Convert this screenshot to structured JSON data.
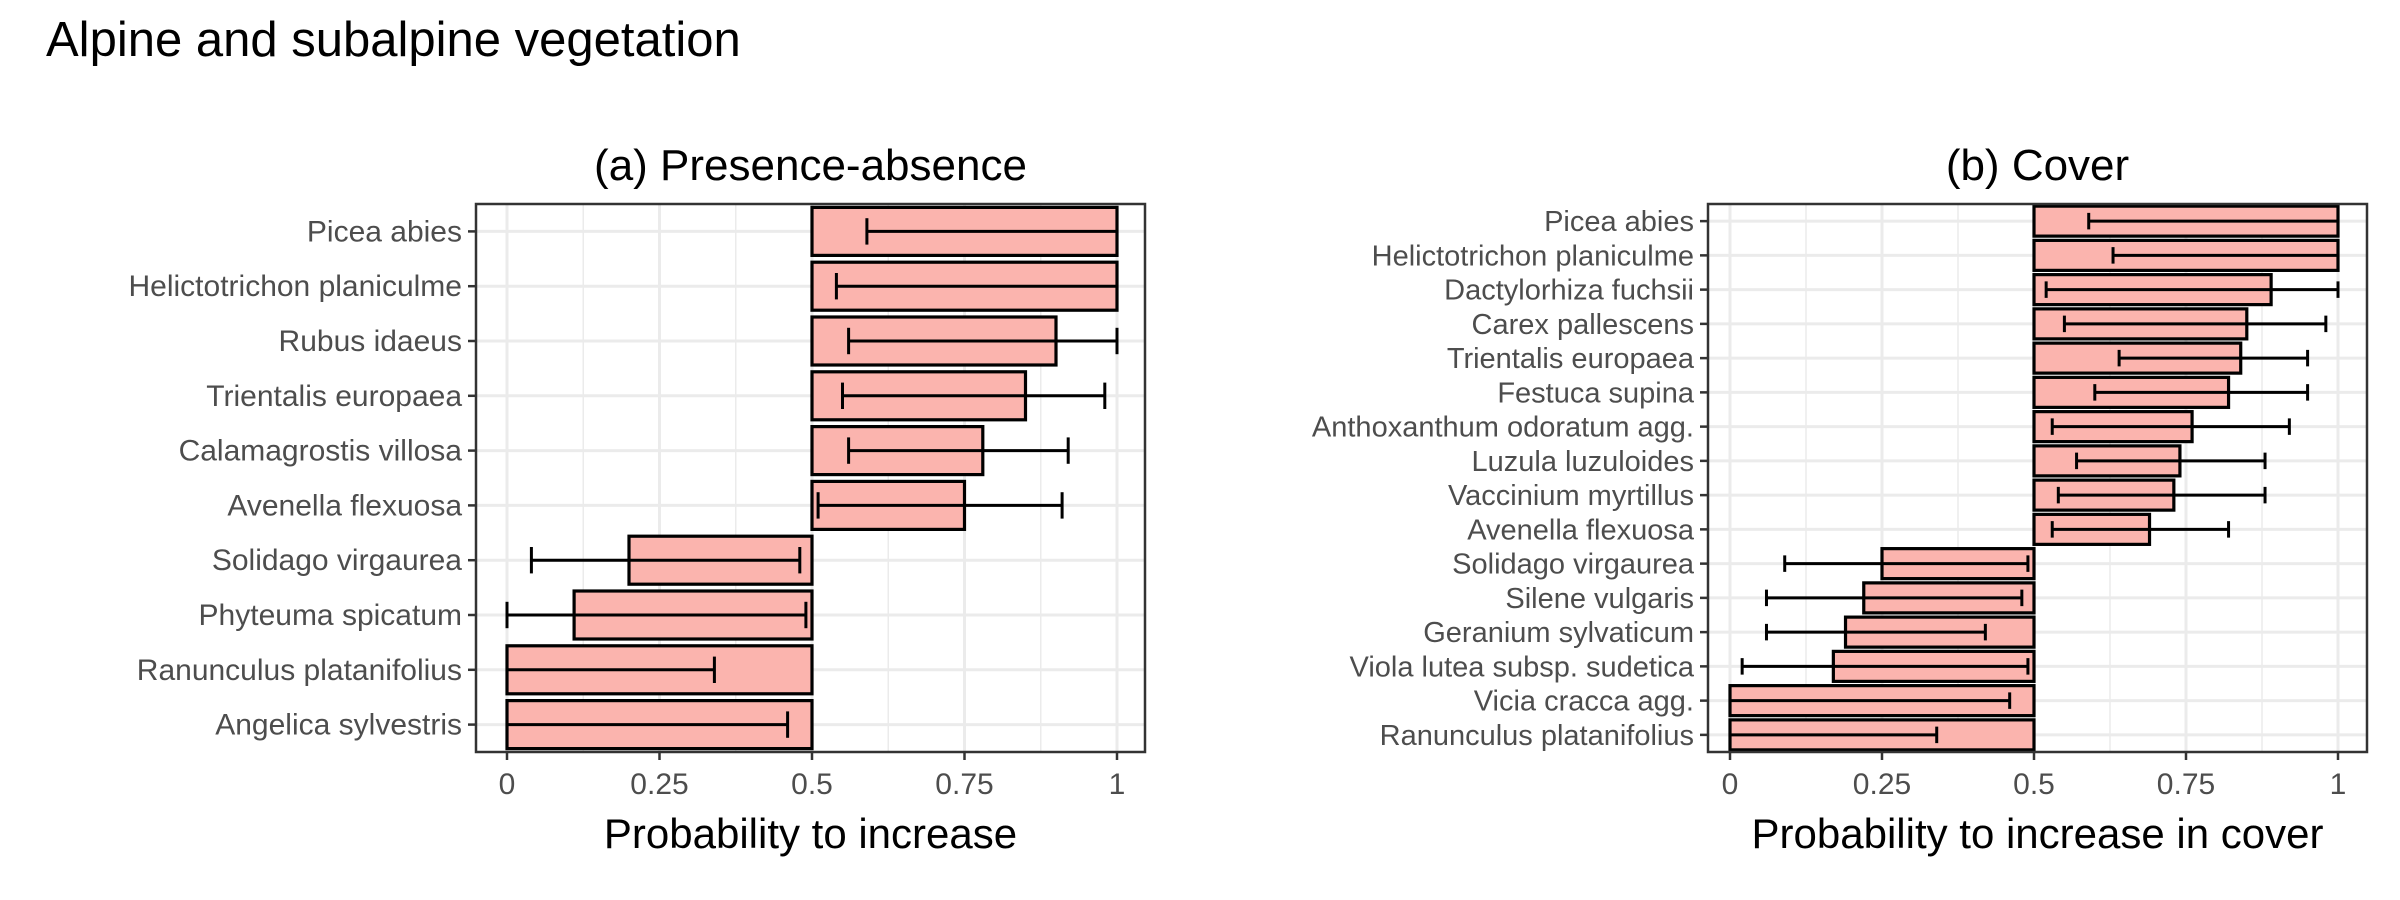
{
  "title": "Alpine and subalpine vegetation",
  "colors": {
    "bar_fill": "#fbb4ae",
    "bar_stroke": "#000000",
    "grid": "#ebebeb",
    "panel_border": "#333333"
  },
  "chart_data": [
    {
      "type": "bar",
      "orientation": "horizontal",
      "title": "(a) Presence-absence",
      "xlabel": "Probability to increase",
      "ylabel": "",
      "xlim": [
        0,
        1
      ],
      "baseline": 0.5,
      "xticks": [
        "0",
        "0.25",
        "0.5",
        "0.75",
        "1"
      ],
      "grid": true,
      "categories": [
        "Picea abies",
        "Helictotrichon planiculme",
        "Rubus idaeus",
        "Trientalis europaea",
        "Calamagrostis villosa",
        "Avenella flexuosa",
        "Solidago virgaurea",
        "Phyteuma spicatum",
        "Ranunculus platanifolius",
        "Angelica sylvestris"
      ],
      "values": [
        1.0,
        1.0,
        0.9,
        0.85,
        0.78,
        0.75,
        0.2,
        0.11,
        0.0,
        0.0
      ],
      "error_low": [
        0.59,
        0.54,
        0.56,
        0.55,
        0.56,
        0.51,
        0.04,
        0.0,
        0.0,
        0.0
      ],
      "error_high": [
        1.0,
        1.0,
        1.0,
        0.98,
        0.92,
        0.91,
        0.48,
        0.49,
        0.34,
        0.46
      ]
    },
    {
      "type": "bar",
      "orientation": "horizontal",
      "title": "(b) Cover",
      "xlabel": "Probability to increase in cover",
      "ylabel": "",
      "xlim": [
        0,
        1
      ],
      "baseline": 0.5,
      "xticks": [
        "0",
        "0.25",
        "0.5",
        "0.75",
        "1"
      ],
      "grid": true,
      "categories": [
        "Picea abies",
        "Helictotrichon planiculme",
        "Dactylorhiza fuchsii",
        "Carex pallescens",
        "Trientalis europaea",
        "Festuca supina",
        "Anthoxanthum odoratum agg.",
        "Luzula luzuloides",
        "Vaccinium myrtillus",
        "Avenella flexuosa",
        "Solidago virgaurea",
        "Silene vulgaris",
        "Geranium sylvaticum",
        "Viola lutea subsp. sudetica",
        "Vicia cracca agg.",
        "Ranunculus platanifolius"
      ],
      "values": [
        1.0,
        1.0,
        0.89,
        0.85,
        0.84,
        0.82,
        0.76,
        0.74,
        0.73,
        0.69,
        0.25,
        0.22,
        0.19,
        0.17,
        0.0,
        0.0
      ],
      "error_low": [
        0.59,
        0.63,
        0.52,
        0.55,
        0.64,
        0.6,
        0.53,
        0.57,
        0.54,
        0.53,
        0.09,
        0.06,
        0.06,
        0.02,
        0.0,
        0.0
      ],
      "error_high": [
        1.0,
        1.0,
        1.0,
        0.98,
        0.95,
        0.95,
        0.92,
        0.88,
        0.88,
        0.82,
        0.49,
        0.48,
        0.42,
        0.49,
        0.46,
        0.34
      ]
    }
  ]
}
